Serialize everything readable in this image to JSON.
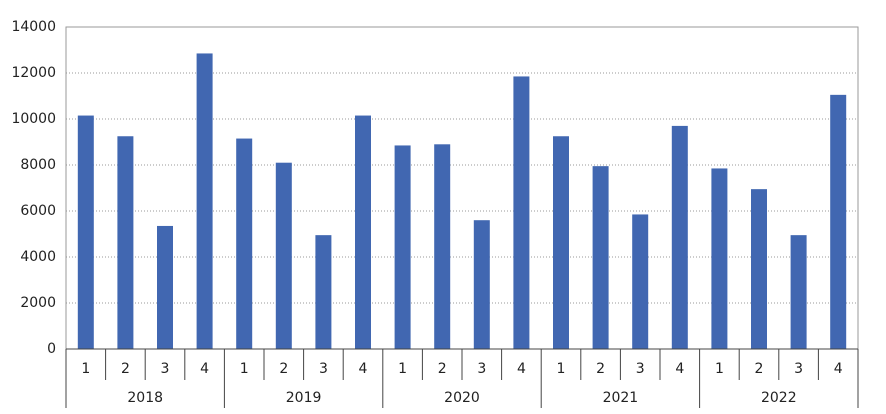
{
  "chart_data": {
    "type": "bar",
    "categories": [
      "1",
      "2",
      "3",
      "4",
      "1",
      "2",
      "3",
      "4",
      "1",
      "2",
      "3",
      "4",
      "1",
      "2",
      "3",
      "4",
      "1",
      "2",
      "3",
      "4"
    ],
    "groups": [
      "2018",
      "2019",
      "2020",
      "2021",
      "2022"
    ],
    "values": [
      10150,
      9250,
      5350,
      12850,
      9150,
      8100,
      4950,
      10150,
      8850,
      8900,
      5600,
      11850,
      9250,
      7950,
      5850,
      9700,
      7850,
      6950,
      4950,
      11050
    ],
    "color": "#4167b1",
    "ylim": [
      0,
      14000
    ],
    "yticks": [
      0,
      2000,
      4000,
      6000,
      8000,
      10000,
      12000,
      14000
    ],
    "grid": true
  }
}
